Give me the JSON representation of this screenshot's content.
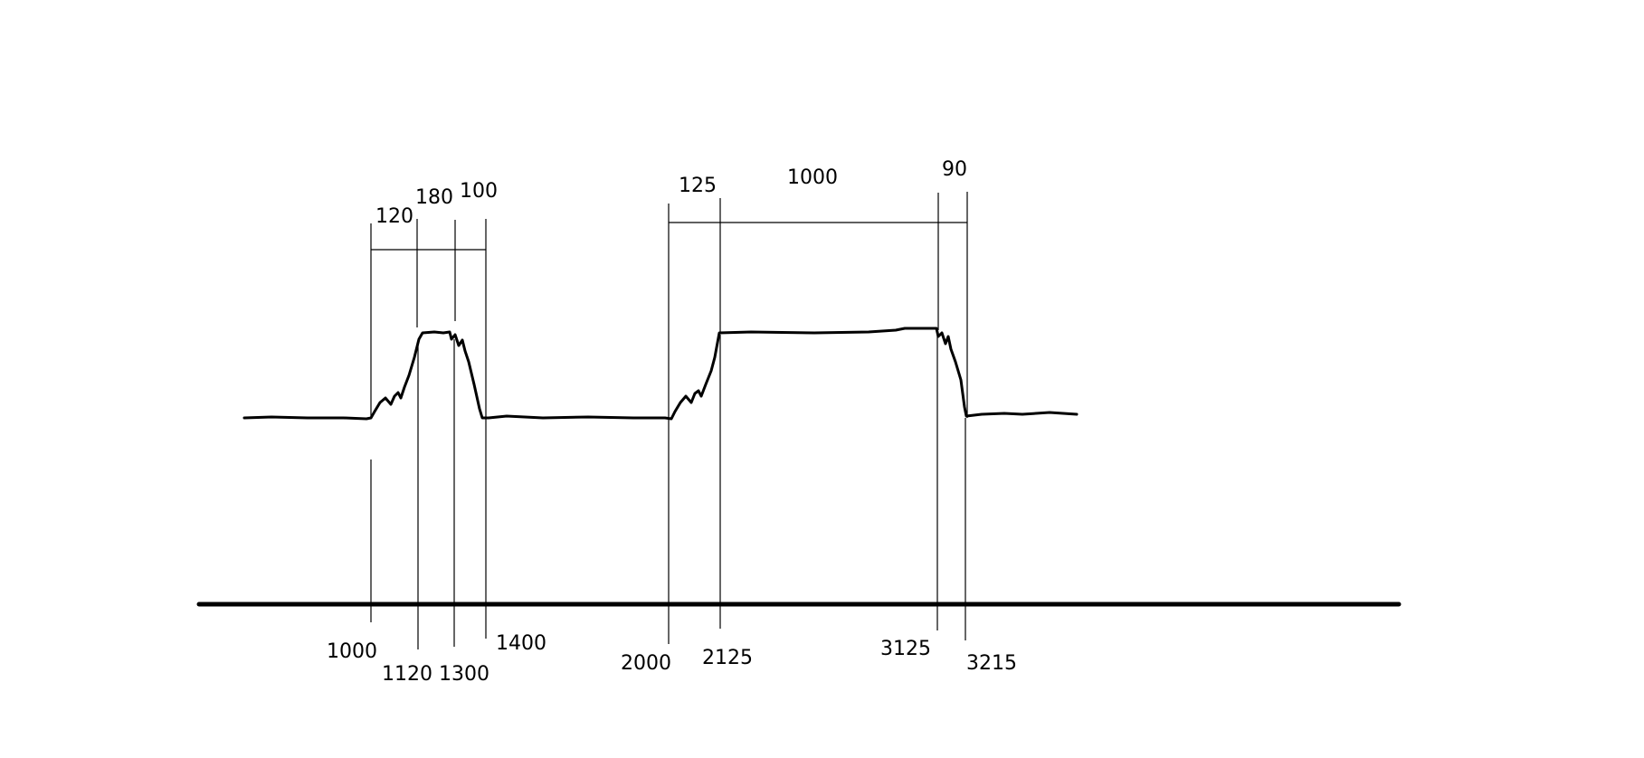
{
  "diagram": {
    "duration_labels": {
      "d120": "120",
      "d180": "180",
      "d100": "100",
      "d125": "125",
      "d1000": "1000",
      "d90": "90"
    },
    "time_labels": {
      "t1000": "1000",
      "t1120": "1120",
      "t1300": "1300",
      "t1400": "1400",
      "t2000": "2000",
      "t2125": "2125",
      "t3125": "3125",
      "t3215": "3215"
    },
    "colors": {
      "ink": "#000000",
      "background": "#ffffff"
    }
  }
}
